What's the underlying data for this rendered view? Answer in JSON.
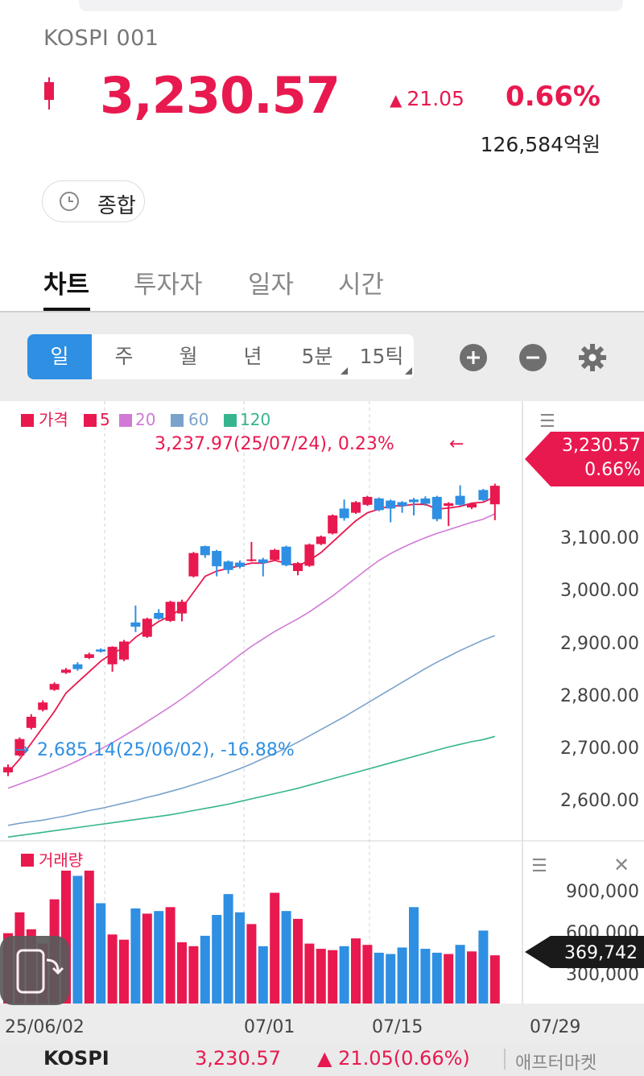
{
  "header": {
    "title": "KOSPI 001",
    "price": "3,230.57",
    "change": "21.05",
    "change_arrow": "▲",
    "change_pct": "0.66%",
    "trading_amount": "126,584억원",
    "mode_label": "종합"
  },
  "tabs": [
    "차트",
    "투자자",
    "일자",
    "시간"
  ],
  "periods": [
    "일",
    "주",
    "월",
    "년",
    "5분",
    "15틱"
  ],
  "controls": {
    "zoom_in": "plus-icon",
    "zoom_out": "minus-icon",
    "settings": "gear-icon"
  },
  "legend": {
    "price": "가격",
    "ma5": "5",
    "ma20": "20",
    "ma60": "60",
    "ma120": "120"
  },
  "annotations": {
    "high": "3,237.97(25/07/24), 0.23%",
    "high_arrow": "←",
    "low": "2,685.14(25/06/02), -16.88%",
    "low_arrow": "→"
  },
  "price_axis": {
    "current_price": "3,230.57",
    "current_pct": "0.66%",
    "ticks": [
      "3,100.00",
      "3,000.00",
      "2,900.00",
      "2,800.00",
      "2,700.00",
      "2,600.00"
    ]
  },
  "volume": {
    "title": "거래량",
    "ticks": [
      "900,000",
      "600,000",
      "300,000"
    ],
    "current": "369,742"
  },
  "x_axis": [
    "25/06/02",
    "07/01",
    "07/15",
    "07/29"
  ],
  "footer": {
    "name": "KOSPI",
    "price": "3,230.57",
    "change": "▲ 21.05(0.66%)",
    "provider": "애프터마켓"
  },
  "colors": {
    "up": "#e8194f",
    "down": "#2e8fe3",
    "ma20": "#d07ad6",
    "ma60": "#7aa3cc",
    "ma120": "#36b58f"
  },
  "chart_data": {
    "type": "candlestick",
    "x_axis_labels": [
      "25/06/02",
      "07/01",
      "07/15",
      "07/29"
    ],
    "ylim": [
      2570,
      3330
    ],
    "candles": [
      {
        "o": 2690,
        "c": 2700,
        "h": 2705,
        "l": 2683
      },
      {
        "o": 2722,
        "c": 2753,
        "h": 2756,
        "l": 2720
      },
      {
        "o": 2774,
        "c": 2795,
        "h": 2800,
        "l": 2771
      },
      {
        "o": 2808,
        "c": 2822,
        "h": 2826,
        "l": 2805
      },
      {
        "o": 2846,
        "c": 2857,
        "h": 2860,
        "l": 2844
      },
      {
        "o": 2878,
        "c": 2884,
        "h": 2887,
        "l": 2876
      },
      {
        "o": 2894,
        "c": 2885,
        "h": 2898,
        "l": 2882
      },
      {
        "o": 2906,
        "c": 2913,
        "h": 2916,
        "l": 2904
      },
      {
        "o": 2922,
        "c": 2918,
        "h": 2924,
        "l": 2916
      },
      {
        "o": 2894,
        "c": 2927,
        "h": 2928,
        "l": 2880
      },
      {
        "o": 2903,
        "c": 2937,
        "h": 2940,
        "l": 2900
      },
      {
        "o": 2973,
        "c": 2965,
        "h": 3005,
        "l": 2955
      },
      {
        "o": 2946,
        "c": 2980,
        "h": 2982,
        "l": 2944
      },
      {
        "o": 2991,
        "c": 2980,
        "h": 2998,
        "l": 2978
      },
      {
        "o": 2976,
        "c": 3012,
        "h": 3014,
        "l": 2974
      },
      {
        "o": 2990,
        "c": 3012,
        "h": 3016,
        "l": 2975
      },
      {
        "o": 3060,
        "c": 3104,
        "h": 3106,
        "l": 3058
      },
      {
        "o": 3117,
        "c": 3100,
        "h": 3118,
        "l": 3095
      },
      {
        "o": 3108,
        "c": 3079,
        "h": 3110,
        "l": 3060
      },
      {
        "o": 3088,
        "c": 3072,
        "h": 3090,
        "l": 3065
      },
      {
        "o": 3086,
        "c": 3078,
        "h": 3090,
        "l": 3075
      },
      {
        "o": 3090,
        "c": 3092,
        "h": 3125,
        "l": 3088
      },
      {
        "o": 3092,
        "c": 3085,
        "h": 3095,
        "l": 3060
      },
      {
        "o": 3091,
        "c": 3110,
        "h": 3112,
        "l": 3089
      },
      {
        "o": 3116,
        "c": 3081,
        "h": 3118,
        "l": 3079
      },
      {
        "o": 3070,
        "c": 3085,
        "h": 3087,
        "l": 3062
      },
      {
        "o": 3080,
        "c": 3120,
        "h": 3122,
        "l": 3078
      },
      {
        "o": 3121,
        "c": 3135,
        "h": 3137,
        "l": 3119
      },
      {
        "o": 3141,
        "c": 3175,
        "h": 3177,
        "l": 3139
      },
      {
        "o": 3188,
        "c": 3170,
        "h": 3205,
        "l": 3165
      },
      {
        "o": 3180,
        "c": 3200,
        "h": 3202,
        "l": 3178
      },
      {
        "o": 3195,
        "c": 3210,
        "h": 3212,
        "l": 3193
      },
      {
        "o": 3207,
        "c": 3185,
        "h": 3209,
        "l": 3183
      },
      {
        "o": 3203,
        "c": 3188,
        "h": 3205,
        "l": 3162
      },
      {
        "o": 3200,
        "c": 3193,
        "h": 3202,
        "l": 3180
      },
      {
        "o": 3205,
        "c": 3200,
        "h": 3208,
        "l": 3175
      },
      {
        "o": 3207,
        "c": 3197,
        "h": 3211,
        "l": 3193
      },
      {
        "o": 3210,
        "c": 3168,
        "h": 3212,
        "l": 3164
      },
      {
        "o": 3193,
        "c": 3198,
        "h": 3200,
        "l": 3155
      },
      {
        "o": 3212,
        "c": 3195,
        "h": 3232,
        "l": 3193
      },
      {
        "o": 3190,
        "c": 3197,
        "h": 3199,
        "l": 3187
      },
      {
        "o": 3223,
        "c": 3204,
        "h": 3225,
        "l": 3202
      },
      {
        "o": 3196,
        "c": 3231,
        "h": 3235,
        "l": 3166
      }
    ],
    "ma5": [
      2690,
      2715,
      2745,
      2775,
      2805,
      2840,
      2860,
      2880,
      2900,
      2915,
      2925,
      2945,
      2960,
      2975,
      2985,
      3000,
      3030,
      3060,
      3070,
      3075,
      3080,
      3085,
      3085,
      3090,
      3085,
      3080,
      3090,
      3105,
      3125,
      3145,
      3165,
      3180,
      3187,
      3193,
      3193,
      3196,
      3196,
      3187,
      3189,
      3192,
      3198,
      3200,
      3210
    ],
    "ma20": [
      2660,
      2668,
      2676,
      2684,
      2693,
      2702,
      2712,
      2723,
      2734,
      2746,
      2759,
      2772,
      2786,
      2800,
      2814,
      2829,
      2845,
      2862,
      2878,
      2895,
      2912,
      2928,
      2942,
      2956,
      2968,
      2980,
      2993,
      3008,
      3023,
      3040,
      3057,
      3074,
      3090,
      3103,
      3114,
      3124,
      3133,
      3141,
      3148,
      3155,
      3162,
      3168,
      3178
    ],
    "ma60": [
      2590,
      2594,
      2597,
      2600,
      2604,
      2608,
      2613,
      2618,
      2622,
      2627,
      2632,
      2637,
      2643,
      2648,
      2654,
      2660,
      2667,
      2674,
      2681,
      2689,
      2697,
      2706,
      2716,
      2726,
      2736,
      2747,
      2759,
      2771,
      2783,
      2795,
      2808,
      2821,
      2834,
      2847,
      2860,
      2873,
      2886,
      2898,
      2909,
      2920,
      2930,
      2940,
      2948
    ],
    "ma120": [
      2568,
      2571,
      2574,
      2577,
      2580,
      2583,
      2586,
      2589,
      2592,
      2595,
      2598,
      2601,
      2604,
      2607,
      2610,
      2614,
      2618,
      2622,
      2626,
      2630,
      2635,
      2640,
      2645,
      2650,
      2655,
      2660,
      2666,
      2672,
      2678,
      2684,
      2690,
      2696,
      2702,
      2708,
      2714,
      2720,
      2726,
      2732,
      2738,
      2743,
      2748,
      2752,
      2758
    ],
    "volume": [
      540,
      700,
      570,
      460,
      800,
      1020,
      980,
      1020,
      770,
      530,
      490,
      730,
      690,
      710,
      740,
      470,
      440,
      520,
      680,
      840,
      700,
      610,
      440,
      850,
      710,
      650,
      460,
      420,
      410,
      440,
      500,
      450,
      390,
      380,
      430,
      740,
      420,
      390,
      380,
      450,
      400,
      560,
      370
    ],
    "volume_ylim": [
      0,
      1150
    ]
  }
}
